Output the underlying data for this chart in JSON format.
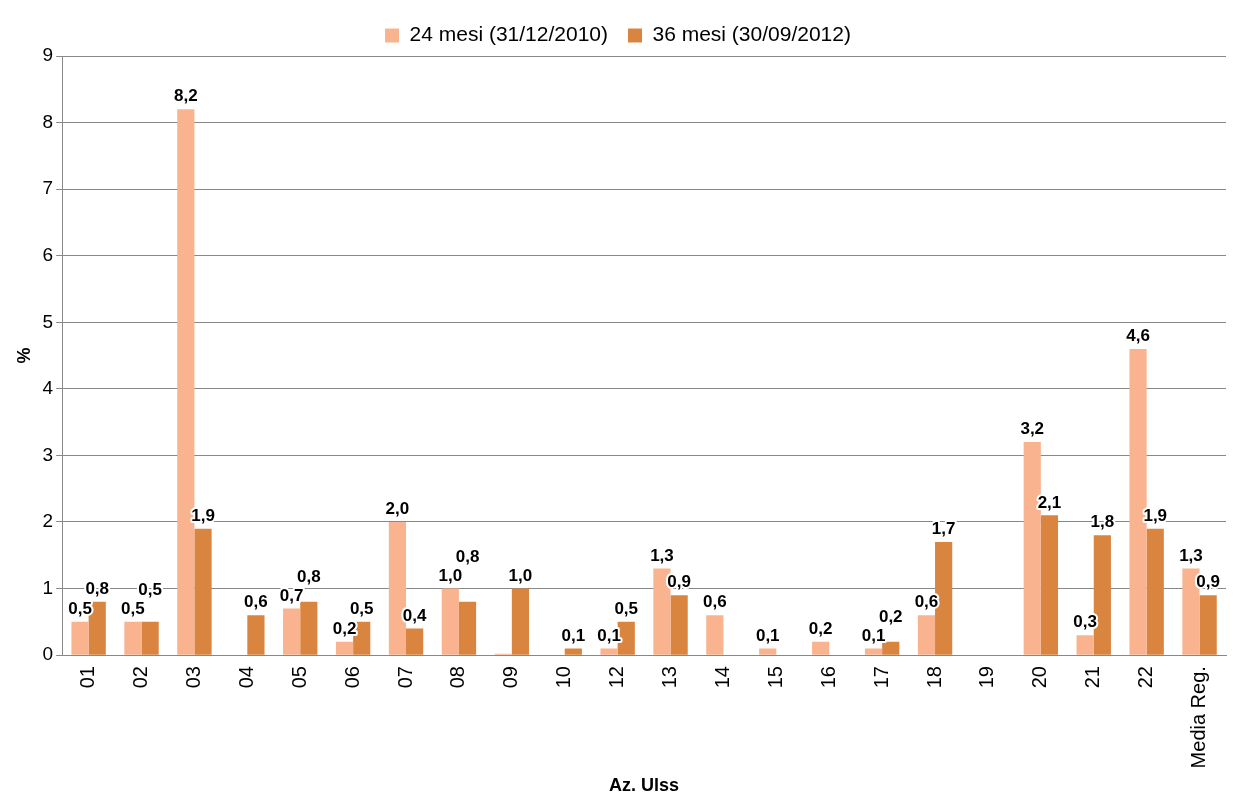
{
  "chart_data": {
    "type": "bar",
    "xlabel": "Az. Ulss",
    "ylabel": "%",
    "categories": [
      "01",
      "02",
      "03",
      "04",
      "05",
      "06",
      "07",
      "08",
      "09",
      "10",
      "12",
      "13",
      "14",
      "15",
      "16",
      "17",
      "18",
      "19",
      "20",
      "21",
      "22",
      "Media Reg."
    ],
    "series": [
      {
        "name": "24 mesi (31/12/2010)",
        "color": "#f9b48f",
        "values": [
          0.5,
          0.5,
          8.2,
          null,
          0.7,
          0.2,
          2.0,
          1.0,
          0.02,
          null,
          0.1,
          1.3,
          0.6,
          0.1,
          0.2,
          0.1,
          0.6,
          null,
          3.2,
          0.3,
          4.6,
          1.3
        ],
        "value_labels": [
          "0,5",
          "0,5",
          "8,2",
          null,
          "0,7",
          "0,2",
          "2,0",
          "1,0",
          null,
          null,
          "0,1",
          "1,3",
          "0,6",
          "0,1",
          "0,2",
          "0,1",
          "0,6",
          null,
          "3,2",
          "0,3",
          "4,6",
          "1,3"
        ]
      },
      {
        "name": "36 mesi (30/09/2012)",
        "color": "#d9843f",
        "values": [
          0.8,
          0.5,
          1.9,
          0.6,
          0.8,
          0.5,
          0.4,
          0.8,
          1.0,
          0.1,
          0.5,
          0.9,
          null,
          null,
          null,
          0.2,
          1.7,
          null,
          2.1,
          1.8,
          1.9,
          0.9
        ],
        "value_labels": [
          "0,8",
          "0,5",
          "1,9",
          "0,6",
          "0,8",
          "0,5",
          "0,4",
          "0,8",
          "1,0",
          "0,1",
          "0,5",
          "0,9",
          null,
          null,
          null,
          "0,2",
          "1,7",
          null,
          "2,1",
          "1,8",
          "1,9",
          "0,9"
        ]
      }
    ],
    "ylim": [
      0,
      9
    ],
    "yticks": [
      0,
      1,
      2,
      3,
      4,
      5,
      6,
      7,
      8,
      9
    ],
    "grid": "y",
    "legend": "top"
  }
}
